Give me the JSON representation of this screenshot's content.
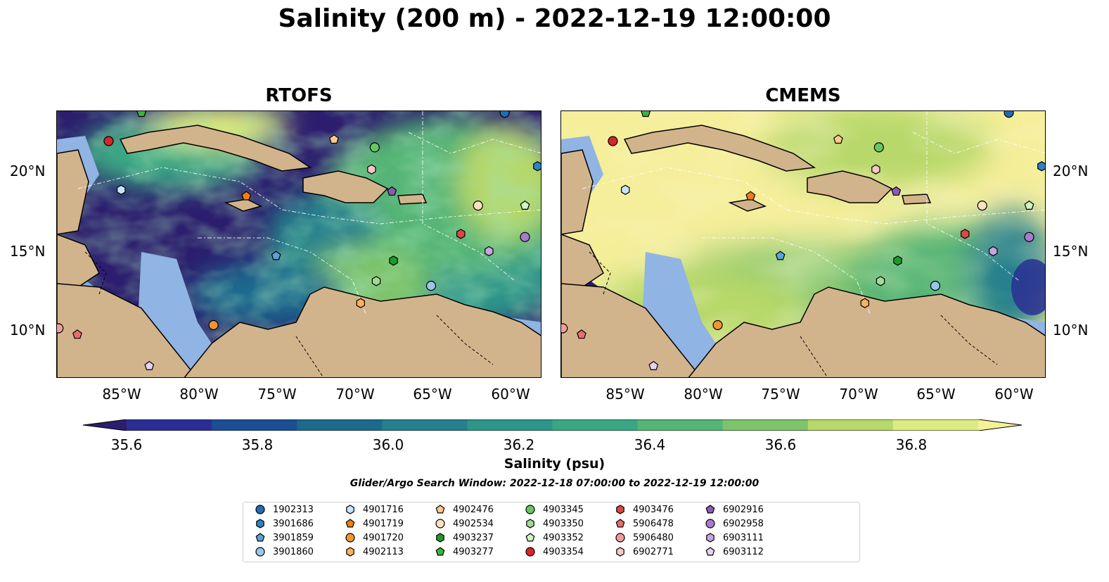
{
  "title": "Salinity (200 m) - 2022-12-19 12:00:00",
  "panels": [
    {
      "title": "RTOFS"
    },
    {
      "title": "CMEMS"
    }
  ],
  "x_ticks": [
    "85°W",
    "80°W",
    "75°W",
    "70°W",
    "65°W",
    "60°W"
  ],
  "y_ticks": [
    "20°N",
    "15°N",
    "10°N"
  ],
  "map_extent": {
    "lon": [
      -89,
      -58
    ],
    "lat": [
      7,
      24
    ]
  },
  "colorbar": {
    "label": "Salinity (psu)",
    "ticks": [
      "35.6",
      "35.8",
      "36.0",
      "36.2",
      "36.4",
      "36.6",
      "36.8"
    ],
    "range": [
      35.5,
      36.9
    ],
    "colors": [
      "#2c1d6e",
      "#2b2f93",
      "#1c4e95",
      "#1e6a8e",
      "#26808d",
      "#2e958a",
      "#3aa783",
      "#56b576",
      "#7ec46c",
      "#b7d86a",
      "#ddec82",
      "#f5f196"
    ]
  },
  "search_window": "Glider/Argo Search Window: 2022-12-18 07:00:00 to 2022-12-19 12:00:00",
  "colors": {
    "land": "#d2b48c",
    "shelf": "#90b4e3"
  },
  "legend": [
    {
      "id": "1902313",
      "color": "#1f6cb4",
      "marker": "circle"
    },
    {
      "id": "3901686",
      "color": "#2e82c4",
      "marker": "hexagon"
    },
    {
      "id": "3901859",
      "color": "#5aa3d6",
      "marker": "pentagon"
    },
    {
      "id": "3901860",
      "color": "#9ac6ea",
      "marker": "circle"
    },
    {
      "id": "4901716",
      "color": "#c7e3f7",
      "marker": "hexagon"
    },
    {
      "id": "4901719",
      "color": "#f07f10",
      "marker": "pentagon"
    },
    {
      "id": "4901720",
      "color": "#f59532",
      "marker": "circle"
    },
    {
      "id": "4902113",
      "color": "#ffb05c",
      "marker": "hexagon"
    },
    {
      "id": "4902476",
      "color": "#ffc88c",
      "marker": "pentagon"
    },
    {
      "id": "4902534",
      "color": "#ffe0bf",
      "marker": "circle"
    },
    {
      "id": "4903237",
      "color": "#1f9a2a",
      "marker": "hexagon"
    },
    {
      "id": "4903277",
      "color": "#3cb43c",
      "marker": "pentagon"
    },
    {
      "id": "4903345",
      "color": "#68c562",
      "marker": "circle"
    },
    {
      "id": "4903350",
      "color": "#9fdc94",
      "marker": "hexagon"
    },
    {
      "id": "4903352",
      "color": "#d2f2c8",
      "marker": "pentagon"
    },
    {
      "id": "4903354",
      "color": "#d62728",
      "marker": "circle"
    },
    {
      "id": "4903476",
      "color": "#de4646",
      "marker": "hexagon"
    },
    {
      "id": "5906478",
      "color": "#ea6d6d",
      "marker": "pentagon"
    },
    {
      "id": "5906480",
      "color": "#f39b9b",
      "marker": "circle"
    },
    {
      "id": "6902771",
      "color": "#f9c6c6",
      "marker": "hexagon"
    },
    {
      "id": "6902916",
      "color": "#8c5cb4",
      "marker": "pentagon"
    },
    {
      "id": "6902958",
      "color": "#a77bd0",
      "marker": "circle"
    },
    {
      "id": "6903111",
      "color": "#c5a5e3",
      "marker": "hexagon"
    },
    {
      "id": "6903112",
      "color": "#e3d2f3",
      "marker": "pentagon"
    }
  ],
  "floats": [
    {
      "id": "1902313",
      "lon": -60.4,
      "lat": 23.9
    },
    {
      "id": "3901686",
      "lon": -58.3,
      "lat": 20.5
    },
    {
      "id": "3901859",
      "lon": -75.0,
      "lat": 14.8
    },
    {
      "id": "3901860",
      "lon": -65.1,
      "lat": 12.9
    },
    {
      "id": "4901716",
      "lon": -84.9,
      "lat": 19.0
    },
    {
      "id": "4901719",
      "lon": -76.9,
      "lat": 18.6
    },
    {
      "id": "4901720",
      "lon": -79.0,
      "lat": 10.4
    },
    {
      "id": "4902113",
      "lon": -69.6,
      "lat": 11.8
    },
    {
      "id": "4902476",
      "lon": -71.3,
      "lat": 22.2
    },
    {
      "id": "4902534",
      "lon": -62.1,
      "lat": 18.0
    },
    {
      "id": "4903237",
      "lon": -67.5,
      "lat": 14.5
    },
    {
      "id": "4903277",
      "lon": -83.6,
      "lat": 23.9
    },
    {
      "id": "4903345",
      "lon": -68.7,
      "lat": 21.7
    },
    {
      "id": "4903350",
      "lon": -68.6,
      "lat": 13.2
    },
    {
      "id": "4903352",
      "lon": -59.1,
      "lat": 18.0
    },
    {
      "id": "4903354",
      "lon": -85.7,
      "lat": 22.1
    },
    {
      "id": "4903476",
      "lon": -63.2,
      "lat": 16.2
    },
    {
      "id": "5906478",
      "lon": -87.7,
      "lat": 9.8
    },
    {
      "id": "5906480",
      "lon": -88.9,
      "lat": 10.2
    },
    {
      "id": "6902771",
      "lon": -68.9,
      "lat": 20.3
    },
    {
      "id": "6902916",
      "lon": -67.6,
      "lat": 18.9
    },
    {
      "id": "6902958",
      "lon": -59.1,
      "lat": 16.0
    },
    {
      "id": "6903111",
      "lon": -61.4,
      "lat": 15.1
    },
    {
      "id": "6903112",
      "lon": -83.1,
      "lat": 7.8
    }
  ]
}
